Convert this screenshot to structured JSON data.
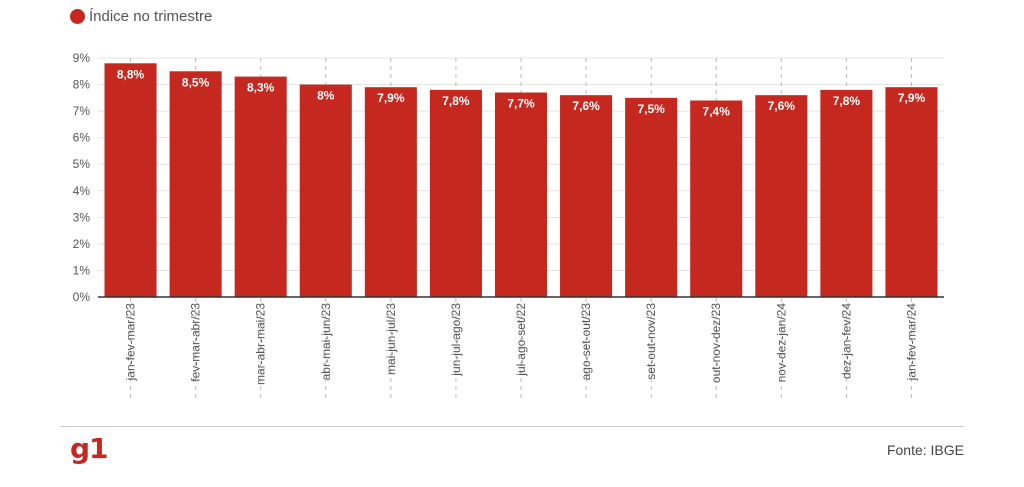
{
  "legend": {
    "label": "Índice no trimestre",
    "color": "#c4281f"
  },
  "source": "Fonte: IBGE",
  "logo": "g1",
  "chart_data": {
    "type": "bar",
    "categories": [
      "jan-fev-mar/23",
      "fev-mar-abr/23",
      "mar-abr-mai/23",
      "abr-mai-jun/23",
      "mai-jun-jul/23",
      "jun-jul-ago/23",
      "jul-ago-set/22",
      "ago-set-out/23",
      "set-out-nov/23",
      "out-nov-dez/23",
      "nov-dez-jan/24",
      "dez-jan-fev/24",
      "jan-fev-mar/24"
    ],
    "values": [
      8.8,
      8.5,
      8.3,
      8.0,
      7.9,
      7.8,
      7.7,
      7.6,
      7.5,
      7.4,
      7.6,
      7.8,
      7.9
    ],
    "data_labels": [
      "8,8%",
      "8,5%",
      "8,3%",
      "8%",
      "7,9%",
      "7,8%",
      "7,7%",
      "7,6%",
      "7,5%",
      "7,4%",
      "7,6%",
      "7,8%",
      "7,9%"
    ],
    "yticks": [
      "0%",
      "1%",
      "2%",
      "3%",
      "4%",
      "5%",
      "6%",
      "7%",
      "8%",
      "9%"
    ],
    "ylim": [
      0,
      9
    ],
    "grid": true,
    "bar_color": "#c4281f"
  }
}
